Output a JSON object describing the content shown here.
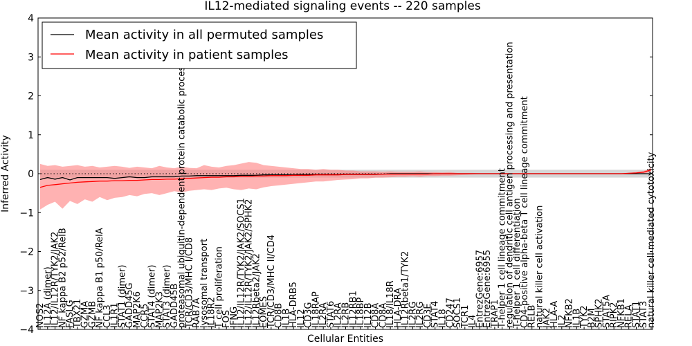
{
  "chart_data": {
    "type": "line",
    "title": "IL12-mediated signaling events -- 220 samples",
    "xlabel": "Cellular Entities",
    "ylabel": "Inferred Activity",
    "ylim": [
      -4,
      4
    ],
    "yticks": [
      -4,
      -3,
      -2,
      -1,
      0,
      1,
      2,
      3,
      4
    ],
    "ytick_labels": [
      "−4",
      "−3",
      "−2",
      "−1",
      "0",
      "1",
      "2",
      "3",
      "4"
    ],
    "grid": false,
    "legend_position": "top-left",
    "colors": {
      "permuted_line": "#000000",
      "patient_line": "#ff0000",
      "patient_band": "#ff7f7f",
      "permuted_band": "#c8c8c8",
      "zero_line": "#000000"
    },
    "categories": [
      "NOS2",
      "IL12A (dimer)",
      "IL12/IL12R/TYK2/JAK2",
      "NF kappa B2 p52/RelB",
      "FASLG",
      "TBX21",
      "GZMA",
      "GZMB",
      "NF kappa B1 p50/RelA",
      "CCL3",
      "IL1R1",
      "STAT1 (dimer)",
      "GADD45G",
      "MAP2K6",
      "CCR5",
      "STAT4 (dimer)",
      "MAP2K3",
      "STAT3 (dimer)",
      "GADD45B",
      "proteasomal ubiquitin-dependent protein catabolic process",
      "TCR/CD3/MHC I/CD8",
      "RAB7A",
      "lysosomal transport",
      "IL18R2",
      "T cell proliferation",
      "FOS",
      "IFNG",
      "IL12/IL12R/TYK2/JAK2/SOCS1",
      "IL12/IL12R/TYK2/JAK2/SPHK2",
      "IL12Rbeta2/JAK2",
      "EOMES",
      "TCR/CD3/MHC II/CD4",
      "CD8B",
      "IL1B",
      "HLA-DRB5",
      "IL12",
      "CD3G",
      "IL18RAP",
      "IL2RA",
      "STAT6",
      "IL2RA",
      "IL2RB",
      "IL12RB1",
      "IL18BP",
      "IL12B",
      "CD8A",
      "CD8A",
      "IL18/IL18R",
      "HLA-DRA",
      "IL12Rbeta1/TYK2",
      "IL2RG",
      "IL2RG",
      "CD3E",
      "STAT4",
      "IL18",
      "CD247",
      "SOCS1",
      "TCR1",
      "IL4",
      "EntrezGene:6957",
      "EntrezGene:6955",
      "TRAP1",
      "T-helper 1 cell lineage commitment",
      "regulation of dendritic cell antigen processing and presentation",
      "T-helper 1 cell differentiation",
      "CD4-positive alpha-beta T cell lineage commitment",
      "RELB",
      "natural killer cell activation",
      "JAK2",
      "HLA-A",
      "IL2",
      "NFKB2",
      "IL1B",
      "TYK2",
      "B2M",
      "SPHK2",
      "STAT5A",
      "RIPK2",
      "NFKB1",
      "RELA",
      "STAT1",
      "STAT3",
      "natural killer cell mediated cytotoxicity"
    ],
    "series": [
      {
        "name": "Mean activity in all permuted samples",
        "color": "#000000",
        "values": [
          -0.15,
          -0.1,
          -0.14,
          -0.1,
          -0.16,
          -0.1,
          -0.1,
          -0.1,
          -0.1,
          -0.1,
          -0.12,
          -0.1,
          -0.08,
          -0.1,
          -0.1,
          -0.08,
          -0.08,
          -0.08,
          -0.08,
          -0.06,
          -0.06,
          -0.05,
          -0.05,
          -0.05,
          -0.05,
          -0.05,
          -0.05,
          -0.04,
          -0.04,
          -0.04,
          -0.03,
          -0.03,
          -0.03,
          -0.03,
          -0.03,
          -0.02,
          -0.02,
          -0.02,
          -0.02,
          -0.02,
          -0.02,
          -0.01,
          -0.01,
          -0.01,
          -0.01,
          -0.01,
          -0.01,
          0,
          0,
          0,
          0,
          0,
          0,
          0,
          0,
          0,
          0,
          0,
          0,
          0,
          0,
          0,
          0,
          0,
          0,
          0,
          0,
          0,
          0,
          0,
          0,
          0,
          0,
          0,
          0,
          0,
          0,
          0,
          0,
          0,
          0,
          0,
          0
        ]
      },
      {
        "name": "Mean activity in patient samples",
        "color": "#ff0000",
        "values": [
          -0.35,
          -0.3,
          -0.28,
          -0.26,
          -0.24,
          -0.22,
          -0.21,
          -0.2,
          -0.19,
          -0.19,
          -0.18,
          -0.18,
          -0.17,
          -0.17,
          -0.16,
          -0.15,
          -0.15,
          -0.14,
          -0.14,
          -0.13,
          -0.12,
          -0.11,
          -0.1,
          -0.09,
          -0.09,
          -0.08,
          -0.08,
          -0.07,
          -0.07,
          -0.06,
          -0.06,
          -0.05,
          -0.05,
          -0.05,
          -0.04,
          -0.04,
          -0.04,
          -0.03,
          -0.03,
          -0.03,
          -0.03,
          -0.02,
          -0.02,
          -0.02,
          -0.02,
          -0.02,
          -0.01,
          -0.01,
          -0.01,
          -0.01,
          -0.01,
          -0.01,
          -0.01,
          0,
          0,
          0,
          0,
          0,
          0,
          0,
          0,
          0,
          0,
          0,
          0,
          0,
          0,
          0,
          0,
          0,
          0,
          0,
          0,
          0,
          0,
          0,
          0,
          0,
          0,
          0.01,
          0.02,
          0.04,
          0.1
        ]
      }
    ],
    "patient_band": {
      "upper": [
        0.25,
        0.2,
        0.22,
        0.18,
        0.2,
        0.22,
        0.18,
        0.2,
        0.16,
        0.18,
        0.2,
        0.18,
        0.15,
        0.18,
        0.16,
        0.14,
        0.2,
        0.16,
        0.14,
        0.18,
        0.15,
        0.14,
        0.22,
        0.18,
        0.16,
        0.2,
        0.22,
        0.26,
        0.3,
        0.28,
        0.22,
        0.2,
        0.18,
        0.16,
        0.14,
        0.12,
        0.12,
        0.1,
        0.12,
        0.1,
        0.1,
        0.08,
        0.08,
        0.06,
        0.06,
        0.06,
        0.05,
        0.06,
        0.05,
        0.05,
        0.05,
        0.06,
        0.04,
        0.04,
        0.03,
        0.04,
        0.02,
        0.02,
        0.02,
        0.01,
        0.01,
        0.01,
        0.01,
        0.01,
        0.01,
        0.01,
        0.01,
        0.01,
        0.01,
        0.01,
        0.01,
        0.01,
        0.01,
        0.01,
        0.01,
        0.01,
        0.01,
        0.01,
        0.01,
        0.02,
        0.04,
        0.07,
        0.15
      ],
      "lower": [
        -0.92,
        -0.8,
        -0.72,
        -0.9,
        -0.7,
        -0.78,
        -0.66,
        -0.72,
        -0.6,
        -0.68,
        -0.62,
        -0.6,
        -0.55,
        -0.58,
        -0.52,
        -0.5,
        -0.55,
        -0.5,
        -0.45,
        -0.48,
        -0.44,
        -0.42,
        -0.4,
        -0.42,
        -0.38,
        -0.36,
        -0.4,
        -0.42,
        -0.38,
        -0.4,
        -0.35,
        -0.32,
        -0.3,
        -0.28,
        -0.26,
        -0.24,
        -0.22,
        -0.2,
        -0.2,
        -0.18,
        -0.16,
        -0.15,
        -0.14,
        -0.12,
        -0.12,
        -0.1,
        -0.1,
        -0.09,
        -0.08,
        -0.08,
        -0.07,
        -0.08,
        -0.06,
        -0.06,
        -0.05,
        -0.05,
        -0.04,
        -0.03,
        -0.02,
        -0.01,
        -0.01,
        -0.01,
        -0.01,
        -0.01,
        -0.01,
        -0.01,
        -0.01,
        -0.01,
        -0.01,
        -0.01,
        -0.01,
        -0.01,
        -0.01,
        -0.01,
        -0.01,
        -0.01,
        -0.01,
        -0.01,
        -0.01,
        -0.01,
        -0.01,
        0,
        0.05
      ]
    },
    "permuted_band": {
      "upper": [
        0.1,
        0.1,
        0.1,
        0.1,
        0.1,
        0.1,
        0.1,
        0.1,
        0.1,
        0.1,
        0.1,
        0.1,
        0.1,
        0.1,
        0.1,
        0.1,
        0.1,
        0.1,
        0.1,
        0.1,
        0.1,
        0.1,
        0.1,
        0.1,
        0.1,
        0.1,
        0.1,
        0.1,
        0.1,
        0.1,
        0.1,
        0.1,
        0.1,
        0.1,
        0.1,
        0.1,
        0.1,
        0.1,
        0.1,
        0.1,
        0.1,
        0.1,
        0.1,
        0.1,
        0.1,
        0.1,
        0.1,
        0.1,
        0.1,
        0.1,
        0.1,
        0.1,
        0.1,
        0.1,
        0.1,
        0.1,
        0.1,
        0.1,
        0.1,
        0.1,
        0.1,
        0.1,
        0.1,
        0.1,
        0.1,
        0.1,
        0.1,
        0.1,
        0.1,
        0.1,
        0.1,
        0.1,
        0.1,
        0.1,
        0.1,
        0.1,
        0.1,
        0.1,
        0.1,
        0.1,
        0.1,
        0.1,
        0.1
      ],
      "lower": [
        -0.1,
        -0.1,
        -0.1,
        -0.1,
        -0.1,
        -0.1,
        -0.1,
        -0.1,
        -0.1,
        -0.1,
        -0.1,
        -0.1,
        -0.1,
        -0.1,
        -0.1,
        -0.1,
        -0.1,
        -0.1,
        -0.1,
        -0.1,
        -0.1,
        -0.1,
        -0.1,
        -0.1,
        -0.1,
        -0.1,
        -0.1,
        -0.1,
        -0.1,
        -0.1,
        -0.1,
        -0.1,
        -0.1,
        -0.1,
        -0.1,
        -0.1,
        -0.1,
        -0.1,
        -0.1,
        -0.1,
        -0.1,
        -0.1,
        -0.1,
        -0.1,
        -0.1,
        -0.1,
        -0.1,
        -0.1,
        -0.1,
        -0.1,
        -0.1,
        -0.1,
        -0.1,
        -0.1,
        -0.1,
        -0.1,
        -0.1,
        -0.1,
        -0.1,
        -0.1,
        -0.1,
        -0.1,
        -0.1,
        -0.1,
        -0.1,
        -0.1,
        -0.1,
        -0.1,
        -0.1,
        -0.1,
        -0.1,
        -0.1,
        -0.1,
        -0.1,
        -0.1,
        -0.1,
        -0.1,
        -0.1,
        -0.1,
        -0.1,
        -0.1,
        -0.1,
        -0.1
      ]
    }
  }
}
